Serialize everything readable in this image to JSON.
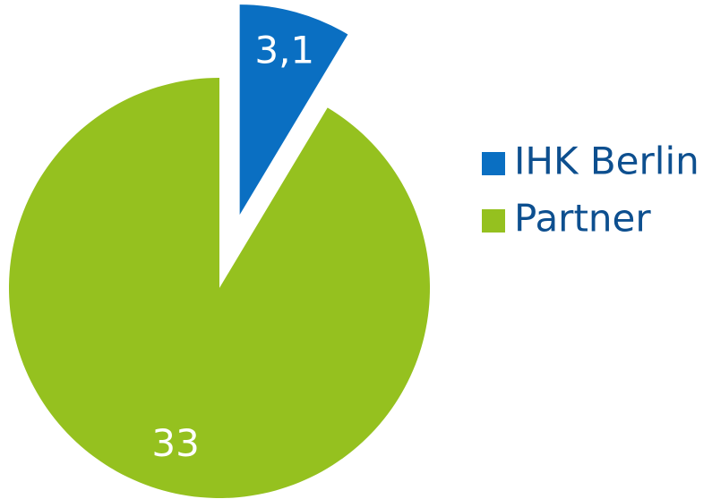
{
  "chart_data": {
    "type": "pie",
    "categories": [
      "IHK Berlin",
      "Partner"
    ],
    "values": [
      3.1,
      33
    ],
    "value_labels": [
      "3,1",
      "33"
    ],
    "colors": [
      "#0a6fc2",
      "#95c11f"
    ],
    "legend": "right"
  }
}
